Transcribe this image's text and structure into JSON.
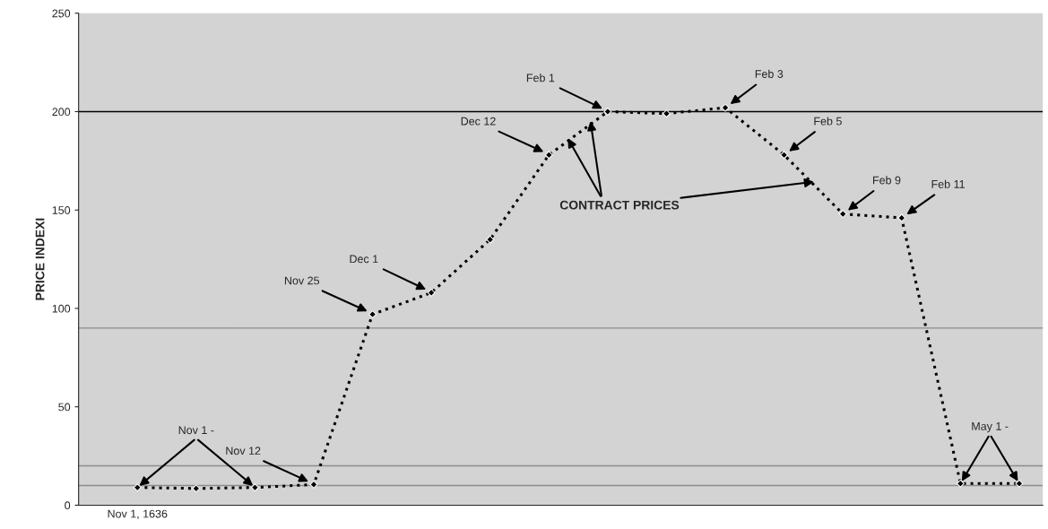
{
  "chart_data": {
    "type": "line",
    "ylabel": "PRICE INDEXI",
    "categories": [
      "Nov 1, 1636",
      null,
      null,
      null,
      null,
      null,
      null,
      null,
      null,
      null,
      null,
      null,
      null,
      null,
      null,
      null
    ],
    "series": [
      {
        "color": "#000000",
        "values": [
          9,
          8.5,
          9,
          10.5,
          97,
          108,
          135,
          178,
          200,
          199,
          202,
          178,
          148,
          146,
          11,
          11
        ]
      }
    ],
    "ylim": [
      0,
      250
    ],
    "yticks": [
      0,
      50,
      100,
      150,
      200,
      250
    ],
    "grid": false,
    "legend": false,
    "marker": "diamond",
    "line_style": "dotted",
    "ref_lines": [
      {
        "axis": "y",
        "value": 200,
        "color": "#000000"
      },
      {
        "axis": "y",
        "value": 90,
        "color": "#8c8c8c"
      },
      {
        "axis": "y",
        "value": 20,
        "color": "#8c8c8c"
      },
      {
        "axis": "y",
        "value": 10,
        "color": "#8c8c8c"
      }
    ],
    "annotations": [
      "Nov 1 -",
      "Nov 12",
      "Nov 25",
      "Dec 1",
      "Dec 12",
      "Feb 1",
      "Feb 3",
      "Feb 5",
      "Feb 9",
      "Feb 11",
      "May 1 -",
      "CONTRACT PRICES"
    ]
  }
}
